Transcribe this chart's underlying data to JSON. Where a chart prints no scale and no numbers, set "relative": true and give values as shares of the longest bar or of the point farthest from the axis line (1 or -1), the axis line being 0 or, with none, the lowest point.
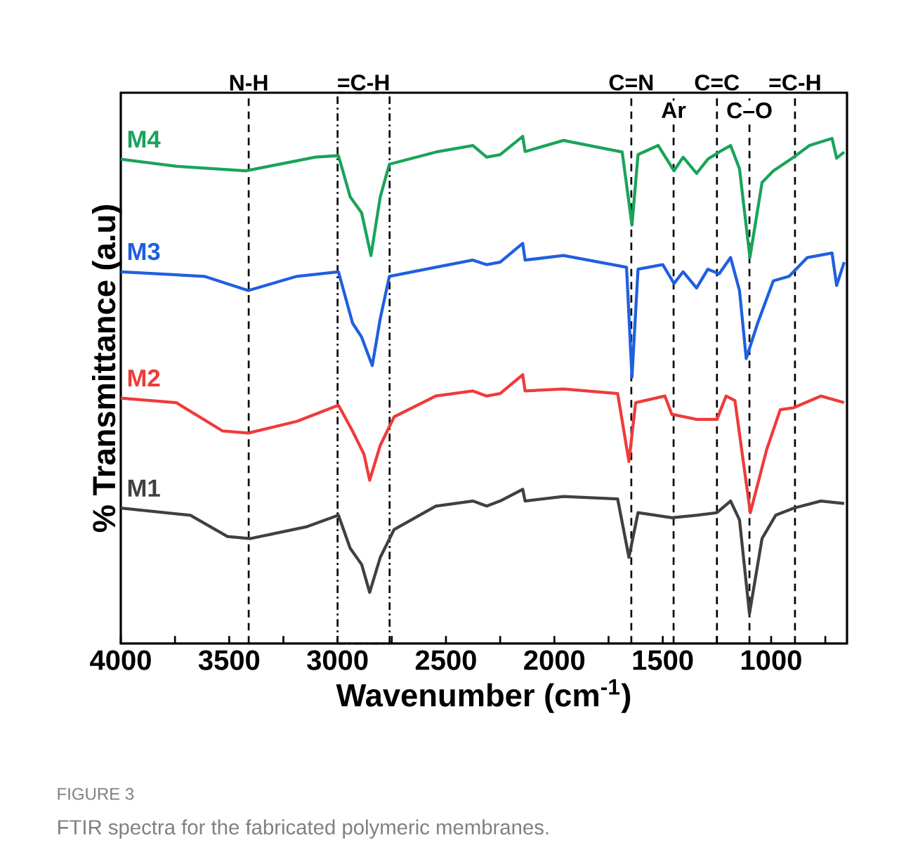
{
  "chart_data": {
    "type": "line",
    "relative": true,
    "xlabel": "Wavenumber (cm$^{-1}$)",
    "ylabel": "% Transmittance (a.u)",
    "xlim": [
      4000,
      650
    ],
    "xticks": [
      4000,
      {
        "value": 3750,
        "label": null
      },
      3500,
      {
        "value": 3250,
        "label": null
      },
      3000,
      {
        "value": 2750,
        "label": null
      },
      2500,
      {
        "value": 2250,
        "label": null
      },
      2000,
      {
        "value": 1750,
        "label": null
      },
      1500,
      {
        "value": 1250,
        "label": null
      },
      1000,
      {
        "value": 750,
        "label": null
      }
    ],
    "series": [
      {
        "name": "M1",
        "color": "#404040",
        "x": [
          4000,
          3679,
          3508,
          3402,
          3145,
          2996,
          2942,
          2889,
          2852,
          2803,
          2739,
          2547,
          2376,
          2312,
          2250,
          2146,
          2135,
          1958,
          1708,
          1656,
          1614,
          1458,
          1344,
          1250,
          1187,
          1146,
          1100,
          1042,
          979,
          896,
          771,
          663
        ],
        "values": [
          0.267,
          0.253,
          0.211,
          0.207,
          0.23,
          0.253,
          0.188,
          0.156,
          0.101,
          0.17,
          0.225,
          0.271,
          0.281,
          0.271,
          0.281,
          0.304,
          0.281,
          0.29,
          0.285,
          0.17,
          0.258,
          0.248,
          0.253,
          0.258,
          0.281,
          0.244,
          0.059,
          0.207,
          0.253,
          0.267,
          0.281,
          0.276
        ]
      },
      {
        "name": "M2",
        "color": "#f03a3a",
        "x": [
          4000,
          3744,
          3530,
          3412,
          3188,
          2996,
          2931,
          2878,
          2852,
          2803,
          2739,
          2547,
          2376,
          2312,
          2250,
          2146,
          2135,
          1958,
          1708,
          1656,
          1625,
          1490,
          1458,
          1344,
          1250,
          1208,
          1167,
          1096,
          1021,
          958,
          896,
          771,
          663
        ],
        "values": [
          0.484,
          0.475,
          0.419,
          0.415,
          0.438,
          0.47,
          0.419,
          0.373,
          0.322,
          0.391,
          0.447,
          0.488,
          0.498,
          0.488,
          0.493,
          0.53,
          0.498,
          0.502,
          0.493,
          0.359,
          0.475,
          0.488,
          0.452,
          0.442,
          0.442,
          0.488,
          0.479,
          0.258,
          0.382,
          0.461,
          0.465,
          0.488,
          0.475
        ]
      },
      {
        "name": "M3",
        "color": "#1f5fe0",
        "x": [
          4000,
          3615,
          3412,
          3188,
          2996,
          2931,
          2889,
          2840,
          2803,
          2761,
          2547,
          2376,
          2312,
          2250,
          2146,
          2135,
          1958,
          1667,
          1642,
          1614,
          1500,
          1448,
          1406,
          1344,
          1292,
          1240,
          1187,
          1146,
          1115,
          1062,
          990,
          917,
          833,
          719,
          698,
          663
        ],
        "values": [
          0.733,
          0.724,
          0.696,
          0.724,
          0.733,
          0.632,
          0.604,
          0.548,
          0.641,
          0.724,
          0.742,
          0.756,
          0.747,
          0.752,
          0.789,
          0.756,
          0.765,
          0.742,
          0.525,
          0.738,
          0.747,
          0.71,
          0.733,
          0.701,
          0.738,
          0.729,
          0.761,
          0.696,
          0.562,
          0.632,
          0.715,
          0.724,
          0.761,
          0.77,
          0.706,
          0.752
        ]
      },
      {
        "name": "M4",
        "color": "#1aa35a",
        "x": [
          4000,
          3744,
          3423,
          3102,
          2996,
          2942,
          2889,
          2846,
          2803,
          2761,
          2547,
          2376,
          2312,
          2250,
          2146,
          2135,
          1958,
          1687,
          1642,
          1614,
          1521,
          1448,
          1406,
          1344,
          1292,
          1240,
          1187,
          1146,
          1098,
          1042,
          990,
          896,
          823,
          719,
          698,
          663
        ],
        "values": [
          0.955,
          0.941,
          0.932,
          0.959,
          0.962,
          0.881,
          0.849,
          0.765,
          0.881,
          0.945,
          0.969,
          0.982,
          0.959,
          0.964,
          1.0,
          0.97,
          0.992,
          0.969,
          0.825,
          0.964,
          0.982,
          0.932,
          0.959,
          0.927,
          0.955,
          0.969,
          0.982,
          0.936,
          0.761,
          0.909,
          0.932,
          0.959,
          0.982,
          0.996,
          0.957,
          0.969
        ]
      }
    ],
    "ref_lines": [
      {
        "axis": "x",
        "value": 3410,
        "label": "N-H",
        "line_style": "dashed"
      },
      {
        "axis": "x",
        "value": 3000,
        "label": "=C-H",
        "line_style": "dashdot"
      },
      {
        "axis": "x",
        "value": 2760,
        "line_style": "dashdot"
      },
      {
        "axis": "x",
        "value": 1645,
        "label": "C=N",
        "line_style": "dashed"
      },
      {
        "axis": "x",
        "value": 1450,
        "label": "Ar",
        "line_style": "dashed"
      },
      {
        "axis": "x",
        "value": 1250,
        "label": "C=C",
        "line_style": "dashed"
      },
      {
        "axis": "x",
        "value": 1100,
        "label": "C–O",
        "line_style": "dashed"
      },
      {
        "axis": "x",
        "value": 890,
        "label": "=C-H",
        "line_style": "dashed"
      }
    ],
    "annotations": [
      "FIGURE 3",
      "FTIR spectra for the fabricated polymeric membranes."
    ]
  }
}
